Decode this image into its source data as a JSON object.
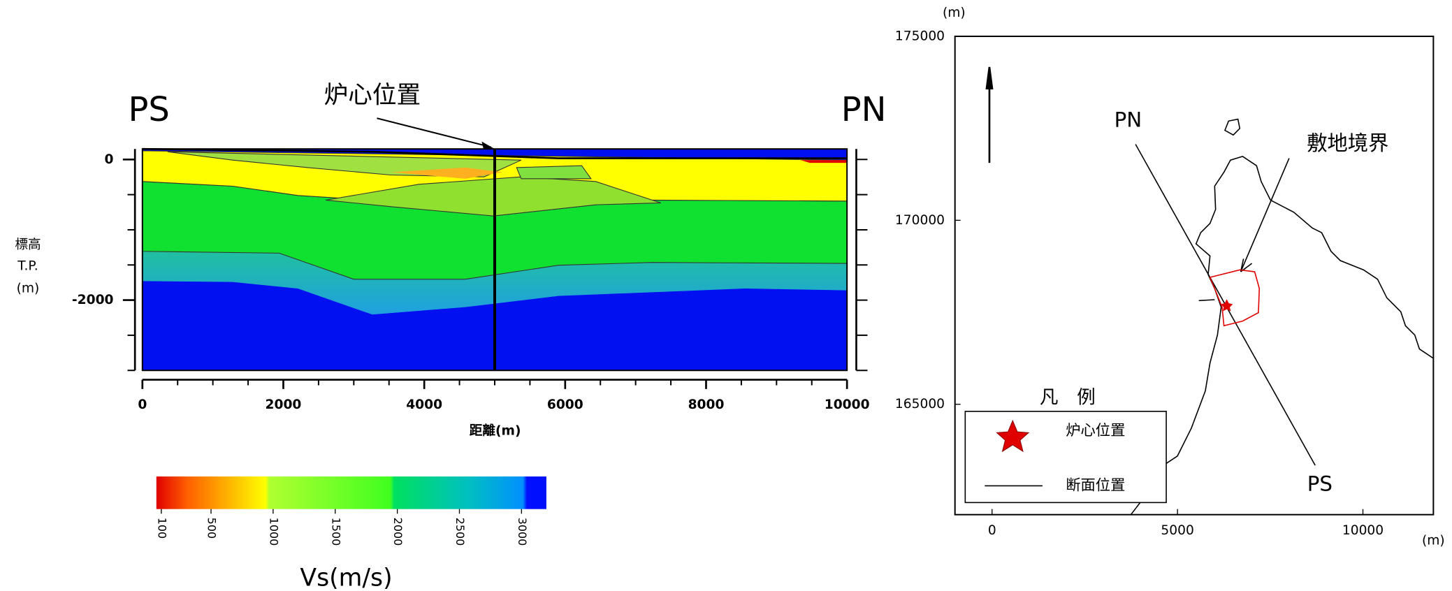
{
  "section": {
    "left_label": "PS",
    "right_label": "PN",
    "annotation": "炉心位置",
    "y_label": [
      "標高",
      "T.P.",
      "(m)"
    ],
    "x_label": "距離(m)",
    "xlim": [
      0,
      10000
    ],
    "xticks": [
      0,
      2000,
      4000,
      6000,
      8000,
      10000
    ],
    "ylim": [
      -3000,
      150
    ],
    "yticks": [
      0,
      -2000
    ],
    "core_position": 5000
  },
  "colorbar": {
    "title": "Vs(m/s)",
    "range": [
      60,
      3200
    ],
    "ticks": [
      100,
      500,
      1000,
      1500,
      2000,
      2500,
      3000
    ]
  },
  "map": {
    "x_unit": "(m)",
    "y_unit": "(m)",
    "xlim": [
      -1000,
      11900
    ],
    "ylim": [
      162000,
      175000
    ],
    "xticks": [
      0,
      5000,
      10000
    ],
    "yticks": [
      165000,
      170000,
      175000
    ],
    "line_start_label": "PN",
    "line_end_label": "PS",
    "site_boundary": "敷地境界",
    "legend": {
      "title": "凡　例",
      "items": [
        "炉心位置",
        "断面位置"
      ]
    }
  }
}
